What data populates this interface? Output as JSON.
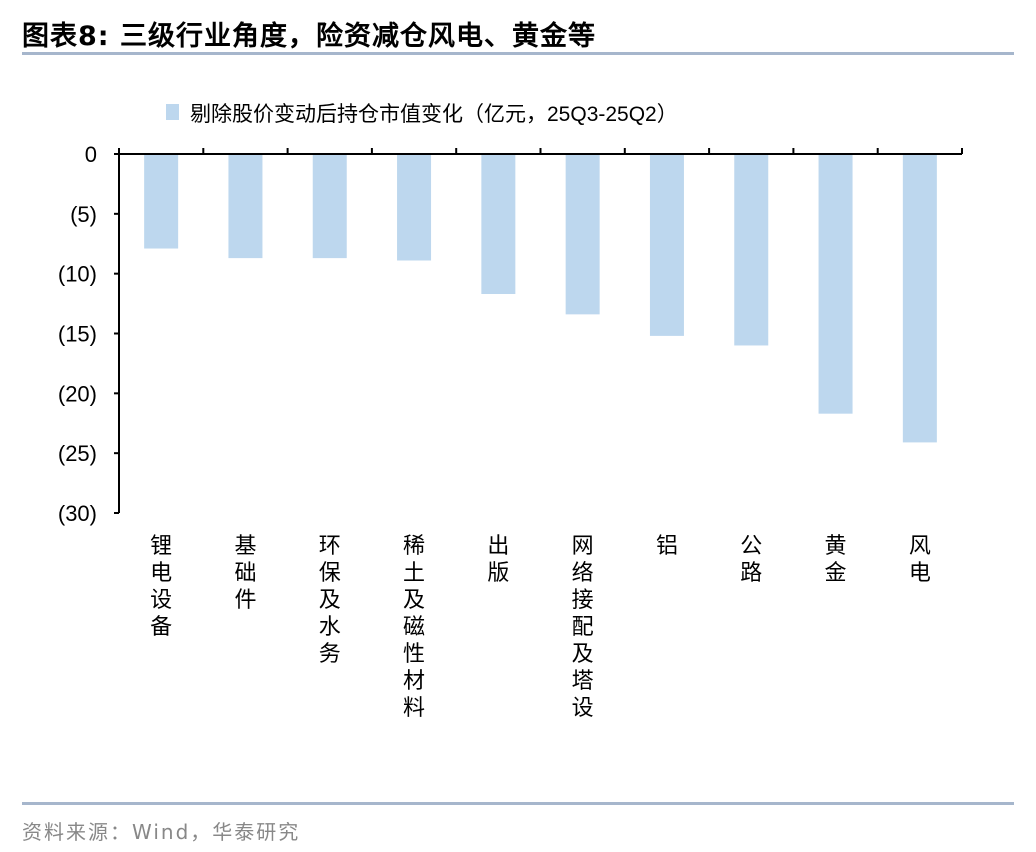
{
  "header": {
    "title": "图表8:  三级行业角度，险资减仓风电、黄金等"
  },
  "footer": {
    "source": "资料来源：Wind，华泰研究"
  },
  "chart_data": {
    "type": "bar",
    "title": "",
    "xlabel": "",
    "ylabel": "",
    "legend": {
      "entries": [
        "剔除股价变动后持仓市值变化（亿元，25Q3-25Q2）"
      ],
      "placement": "top"
    },
    "categories": [
      "锂电设备",
      "基础件",
      "环保及水务",
      "稀土及磁性材料",
      "出版",
      "网络接配及塔设",
      "铝",
      "公路",
      "黄金",
      "风电"
    ],
    "series": [
      {
        "name": "剔除股价变动后持仓市值变化（亿元，25Q3-25Q2）",
        "values": [
          -7.9,
          -8.7,
          -8.7,
          -8.9,
          -11.7,
          -13.4,
          -15.2,
          -16.0,
          -21.7,
          -24.1
        ],
        "color": "#bdd7ee"
      }
    ],
    "ylim": [
      -30,
      0
    ],
    "yticks": [
      0,
      -5,
      -10,
      -15,
      -20,
      -25,
      -30
    ],
    "ytick_labels": [
      "0",
      "(5)",
      "(10)",
      "(15)",
      "(20)",
      "(25)",
      "(30)"
    ],
    "grid": false
  }
}
